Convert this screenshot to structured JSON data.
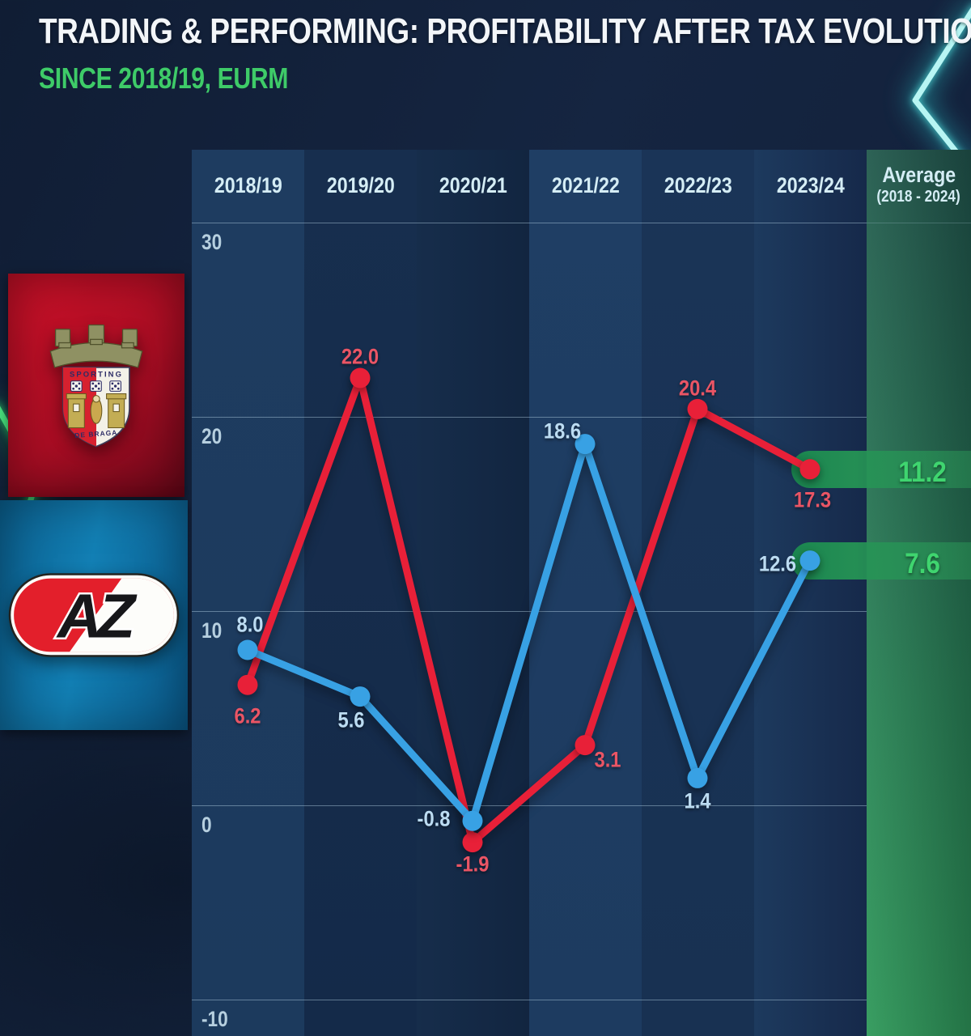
{
  "header": {
    "title": "TRADING & PERFORMING: PROFITABILITY AFTER TAX EVOLUTION",
    "subtitle": "SINCE 2018/19, EURM"
  },
  "average_header": {
    "line1": "Average",
    "line2": "(2018 - 2024)"
  },
  "clubs": [
    {
      "name": "SC Braga",
      "logo_icon": "braga-crest-icon",
      "series_color": "#e82038"
    },
    {
      "name": "AZ Alkmaar",
      "logo_icon": "az-logo-icon",
      "series_color": "#38a1e4"
    }
  ],
  "chart_data": {
    "type": "line",
    "title": "Trading & Performing: Profitability after tax evolution",
    "units": "EURM",
    "categories": [
      "2018/19",
      "2019/20",
      "2020/21",
      "2021/22",
      "2022/23",
      "2023/24"
    ],
    "yticks": [
      30,
      20,
      10,
      0,
      -10
    ],
    "ylim": [
      -12,
      33
    ],
    "grid": true,
    "legend_position": "left-logos",
    "series": [
      {
        "name": "SC Braga",
        "color": "#e82038",
        "label_color": "#ea5565",
        "values": [
          6.2,
          22.0,
          -1.9,
          3.1,
          20.4,
          17.3
        ],
        "value_labels": [
          "6.2",
          "22.0",
          "-1.9",
          "3.1",
          "20.4",
          "17.3"
        ],
        "average": 11.2,
        "average_label": "11.2",
        "label_offsets": [
          [
            0,
            39
          ],
          [
            0,
            -26
          ],
          [
            0,
            27
          ],
          [
            28,
            18
          ],
          [
            0,
            -25
          ],
          [
            3,
            38
          ]
        ]
      },
      {
        "name": "AZ Alkmaar",
        "color": "#38a1e4",
        "label_color": "#bcdcf2",
        "values": [
          8.0,
          5.6,
          -0.8,
          18.6,
          1.4,
          12.6
        ],
        "value_labels": [
          "8.0",
          "5.6",
          "-0.8",
          "18.6",
          "1.4",
          "12.6"
        ],
        "average": 7.6,
        "average_label": "7.6",
        "label_offsets": [
          [
            3,
            -31
          ],
          [
            -11,
            29
          ],
          [
            -48,
            -2
          ],
          [
            -28,
            -16
          ],
          [
            0,
            29
          ],
          [
            -40,
            4
          ]
        ]
      }
    ]
  }
}
